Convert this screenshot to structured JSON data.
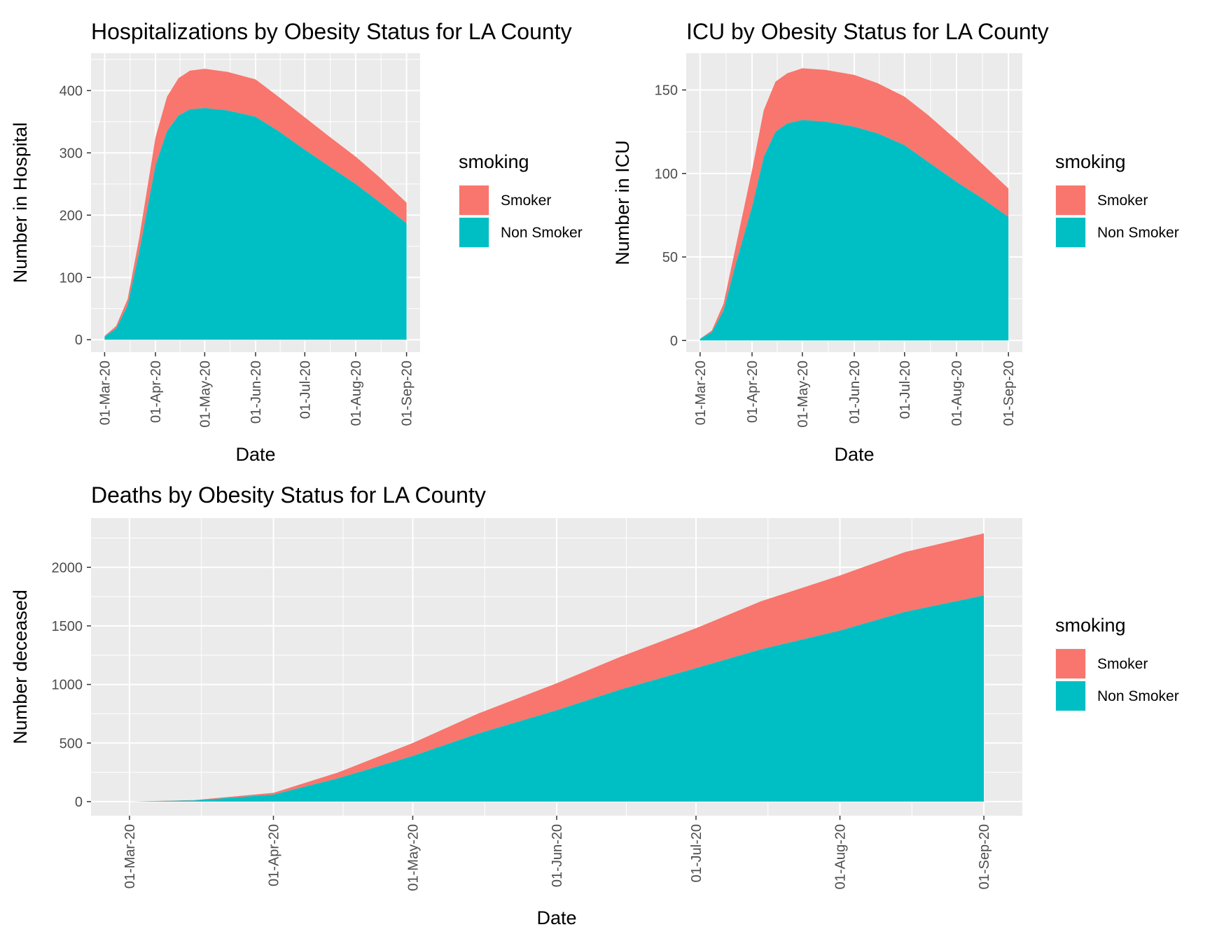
{
  "chart_data": [
    {
      "type": "area",
      "stacked": true,
      "title": "Hospitalizations by Obesity Status for LA County",
      "xlabel": "Date",
      "ylabel": "Number in Hospital",
      "x_ticks": [
        "01-Mar-20",
        "01-Apr-20",
        "01-May-20",
        "01-Jun-20",
        "01-Jul-20",
        "01-Aug-20",
        "01-Sep-20"
      ],
      "y_ticks": [
        0,
        100,
        200,
        300,
        400
      ],
      "ylim": [
        -20,
        460
      ],
      "grid": true,
      "legend": {
        "title": "smoking",
        "position": "right",
        "entries": [
          {
            "label": "Smoker",
            "color": "#F8766D"
          },
          {
            "label": "Non Smoker",
            "color": "#00BFC4"
          }
        ]
      },
      "x": [
        "01-Mar-20",
        "08-Mar-20",
        "15-Mar-20",
        "22-Mar-20",
        "01-Apr-20",
        "08-Apr-20",
        "15-Apr-20",
        "22-Apr-20",
        "01-May-20",
        "15-May-20",
        "01-Jun-20",
        "15-Jun-20",
        "01-Jul-20",
        "15-Jul-20",
        "01-Aug-20",
        "15-Aug-20",
        "01-Sep-20"
      ],
      "series": [
        {
          "name": "Non Smoker",
          "color": "#00BFC4",
          "values": [
            5,
            18,
            55,
            140,
            280,
            335,
            360,
            370,
            372,
            368,
            358,
            335,
            305,
            280,
            250,
            222,
            187
          ]
        },
        {
          "name": "Smoker",
          "color": "#F8766D",
          "values": [
            1,
            4,
            10,
            22,
            45,
            55,
            60,
            62,
            63,
            62,
            60,
            55,
            52,
            48,
            44,
            40,
            33
          ]
        }
      ]
    },
    {
      "type": "area",
      "stacked": true,
      "title": "ICU by Obesity Status for LA County",
      "xlabel": "Date",
      "ylabel": "Number in ICU",
      "x_ticks": [
        "01-Mar-20",
        "01-Apr-20",
        "01-May-20",
        "01-Jun-20",
        "01-Jul-20",
        "01-Aug-20",
        "01-Sep-20"
      ],
      "y_ticks": [
        0,
        50,
        100,
        150
      ],
      "ylim": [
        -7,
        172
      ],
      "grid": true,
      "legend": {
        "title": "smoking",
        "position": "right",
        "entries": [
          {
            "label": "Smoker",
            "color": "#F8766D"
          },
          {
            "label": "Non Smoker",
            "color": "#00BFC4"
          }
        ]
      },
      "x": [
        "01-Mar-20",
        "08-Mar-20",
        "15-Mar-20",
        "22-Mar-20",
        "01-Apr-20",
        "08-Apr-20",
        "15-Apr-20",
        "22-Apr-20",
        "01-May-20",
        "15-May-20",
        "01-Jun-20",
        "15-Jun-20",
        "01-Jul-20",
        "15-Jul-20",
        "01-Aug-20",
        "15-Aug-20",
        "01-Sep-20"
      ],
      "series": [
        {
          "name": "Non Smoker",
          "color": "#00BFC4",
          "values": [
            1,
            5,
            18,
            45,
            80,
            110,
            125,
            130,
            132,
            131,
            128,
            124,
            117,
            107,
            95,
            86,
            74
          ]
        },
        {
          "name": "Smoker",
          "color": "#F8766D",
          "values": [
            0,
            1,
            4,
            10,
            22,
            28,
            30,
            30,
            31,
            31,
            31,
            30,
            29,
            28,
            25,
            21,
            17
          ]
        }
      ]
    },
    {
      "type": "area",
      "stacked": true,
      "title": "Deaths by Obesity Status for LA County",
      "xlabel": "Date",
      "ylabel": "Number deceased",
      "x_ticks": [
        "01-Mar-20",
        "01-Apr-20",
        "01-May-20",
        "01-Jun-20",
        "01-Jul-20",
        "01-Aug-20",
        "01-Sep-20"
      ],
      "y_ticks": [
        0,
        500,
        1000,
        1500,
        2000
      ],
      "ylim": [
        -120,
        2420
      ],
      "grid": true,
      "legend": {
        "title": "smoking",
        "position": "right",
        "entries": [
          {
            "label": "Smoker",
            "color": "#F8766D"
          },
          {
            "label": "Non Smoker",
            "color": "#00BFC4"
          }
        ]
      },
      "x": [
        "01-Mar-20",
        "15-Mar-20",
        "01-Apr-20",
        "15-Apr-20",
        "01-May-20",
        "15-May-20",
        "01-Jun-20",
        "15-Jun-20",
        "01-Jul-20",
        "15-Jul-20",
        "01-Aug-20",
        "15-Aug-20",
        "01-Sep-20"
      ],
      "series": [
        {
          "name": "Non Smoker",
          "color": "#00BFC4",
          "values": [
            0,
            10,
            60,
            200,
            390,
            580,
            780,
            960,
            1140,
            1300,
            1460,
            1620,
            1760
          ]
        },
        {
          "name": "Smoker",
          "color": "#F8766D",
          "values": [
            0,
            3,
            15,
            50,
            110,
            170,
            230,
            280,
            340,
            410,
            470,
            510,
            530
          ]
        }
      ]
    }
  ]
}
